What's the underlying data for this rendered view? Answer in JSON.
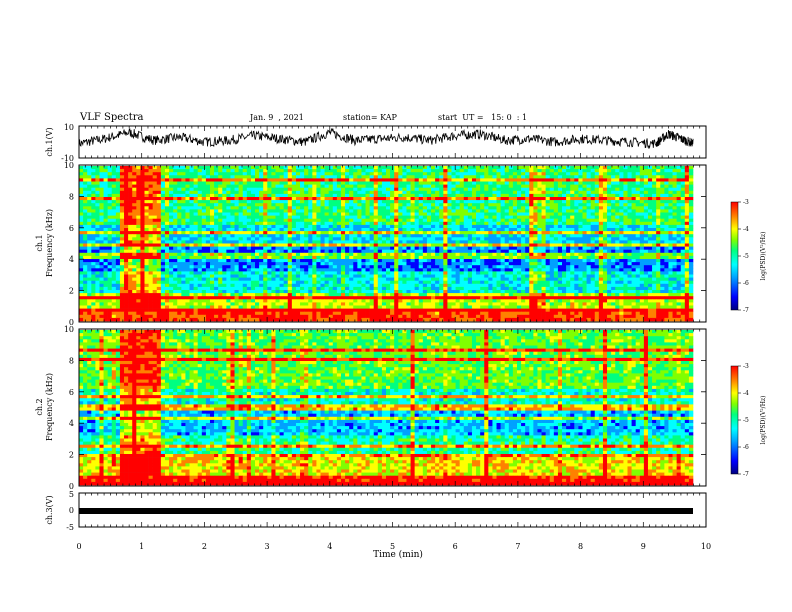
{
  "header": {
    "title": "VLF Spectra",
    "date": "Jan. 9  , 2021",
    "station": "station= KAP",
    "start": "start  UT =   15: 0  : 1"
  },
  "chart_data": [
    {
      "type": "line",
      "name": "ch1-waveform",
      "ylabel": "ch.1(V)",
      "ylim": [
        -10,
        10
      ],
      "yticks": [
        "10",
        "-10"
      ],
      "xlim": [
        0,
        10
      ],
      "x": [
        0.0,
        0.4,
        0.8,
        1.2,
        1.6,
        2.0,
        2.4,
        2.8,
        3.2,
        3.6,
        4.0,
        4.4,
        4.8,
        5.2,
        5.6,
        6.0,
        6.4,
        6.8,
        7.2,
        7.6,
        8.0,
        8.4,
        8.8,
        9.2,
        9.4,
        9.6,
        9.8
      ],
      "y": [
        -1,
        2,
        6,
        1,
        3,
        0,
        1,
        4,
        2,
        0,
        6,
        1,
        2,
        3,
        1,
        4,
        5,
        1,
        2,
        0,
        2,
        1,
        0,
        -1,
        5,
        2,
        -1
      ],
      "color": "#000000"
    },
    {
      "type": "heatmap",
      "name": "ch1-spectrogram",
      "ylabel": "ch.1\nFrequency (kHz)",
      "ylim": [
        0,
        10
      ],
      "xlim": [
        0,
        10
      ],
      "yticks": [
        "0",
        "2",
        "4",
        "6",
        "8",
        "10"
      ],
      "colorbar": {
        "label": "log(PSD)(V²/Hz)",
        "ticks": [
          "-3",
          "-4",
          "-5",
          "-6",
          "-7"
        ],
        "range": [
          -7,
          -3
        ]
      }
    },
    {
      "type": "heatmap",
      "name": "ch2-spectrogram",
      "ylabel": "ch.2\nFrequency (kHz)",
      "ylim": [
        0,
        10
      ],
      "xlim": [
        0,
        10
      ],
      "yticks": [
        "0",
        "2",
        "4",
        "6",
        "8",
        "10"
      ],
      "colorbar": {
        "label": "log(PSD)(V²/Hz)",
        "ticks": [
          "-3",
          "-4",
          "-5",
          "-6",
          "-7"
        ],
        "range": [
          -7,
          -3
        ]
      }
    },
    {
      "type": "line",
      "name": "ch3-waveform",
      "ylabel": "ch.3(V)",
      "ylim": [
        -5,
        5
      ],
      "yticks": [
        "5",
        "0",
        "-5"
      ],
      "xlim": [
        0,
        9.85
      ],
      "x": [
        0,
        9.85
      ],
      "y": [
        0,
        0
      ],
      "color": "#000000"
    }
  ],
  "xaxis": {
    "label": "Time  (min)",
    "ticks": [
      "0",
      "1",
      "2",
      "3",
      "4",
      "5",
      "6",
      "7",
      "8",
      "9",
      "10"
    ]
  },
  "colors": {
    "colormap": [
      "#000080",
      "#0000ff",
      "#00a0ff",
      "#00ffff",
      "#00ff80",
      "#80ff00",
      "#ffff00",
      "#ff8000",
      "#ff0000"
    ]
  }
}
